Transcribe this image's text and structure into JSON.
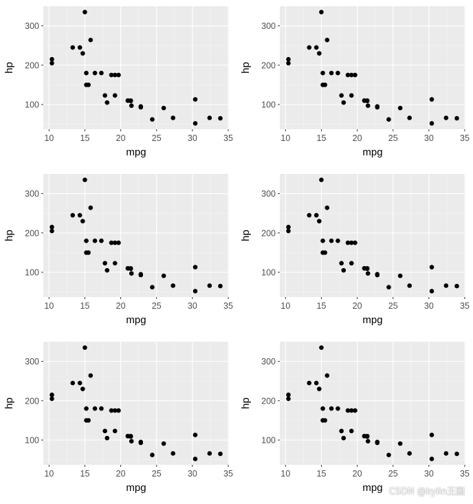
{
  "watermark": "CSDN @kylin王国",
  "style": {
    "panel_bg": "#ebebeb",
    "grid_major": "#ffffff",
    "point": "#000000"
  },
  "chart_data": [
    {
      "type": "scatter",
      "xlabel": "mpg",
      "ylabel": "hp",
      "xlim": [
        9.2,
        35.1
      ],
      "ylim": [
        37.05,
        349.95
      ],
      "xticks": [
        10,
        15,
        20,
        25,
        30,
        35
      ],
      "yticks": [
        100,
        200,
        300
      ],
      "grid": true,
      "x": [
        21,
        21,
        22.8,
        21.4,
        18.7,
        18.1,
        14.3,
        24.4,
        22.8,
        19.2,
        17.8,
        16.4,
        17.3,
        15.2,
        10.4,
        10.4,
        14.7,
        32.4,
        30.4,
        33.9,
        21.5,
        15.5,
        15.2,
        13.3,
        19.2,
        27.3,
        26,
        30.4,
        15.8,
        19.7,
        15,
        21.4
      ],
      "y": [
        110,
        110,
        93,
        110,
        175,
        105,
        245,
        62,
        95,
        123,
        123,
        180,
        180,
        180,
        205,
        215,
        230,
        66,
        52,
        65,
        97,
        150,
        150,
        245,
        175,
        66,
        91,
        113,
        264,
        175,
        335,
        109
      ]
    },
    {
      "type": "scatter",
      "xlabel": "mpg",
      "ylabel": "hp",
      "xlim": [
        9.2,
        35.1
      ],
      "ylim": [
        37.05,
        349.95
      ],
      "xticks": [
        10,
        15,
        20,
        25,
        30,
        35
      ],
      "yticks": [
        100,
        200,
        300
      ],
      "grid": true,
      "x": [
        21,
        21,
        22.8,
        21.4,
        18.7,
        18.1,
        14.3,
        24.4,
        22.8,
        19.2,
        17.8,
        16.4,
        17.3,
        15.2,
        10.4,
        10.4,
        14.7,
        32.4,
        30.4,
        33.9,
        21.5,
        15.5,
        15.2,
        13.3,
        19.2,
        27.3,
        26,
        30.4,
        15.8,
        19.7,
        15,
        21.4
      ],
      "y": [
        110,
        110,
        93,
        110,
        175,
        105,
        245,
        62,
        95,
        123,
        123,
        180,
        180,
        180,
        205,
        215,
        230,
        66,
        52,
        65,
        97,
        150,
        150,
        245,
        175,
        66,
        91,
        113,
        264,
        175,
        335,
        109
      ]
    },
    {
      "type": "scatter",
      "xlabel": "mpg",
      "ylabel": "hp",
      "xlim": [
        9.2,
        35.1
      ],
      "ylim": [
        37.05,
        349.95
      ],
      "xticks": [
        10,
        15,
        20,
        25,
        30,
        35
      ],
      "yticks": [
        100,
        200,
        300
      ],
      "grid": true,
      "x": [
        21,
        21,
        22.8,
        21.4,
        18.7,
        18.1,
        14.3,
        24.4,
        22.8,
        19.2,
        17.8,
        16.4,
        17.3,
        15.2,
        10.4,
        10.4,
        14.7,
        32.4,
        30.4,
        33.9,
        21.5,
        15.5,
        15.2,
        13.3,
        19.2,
        27.3,
        26,
        30.4,
        15.8,
        19.7,
        15,
        21.4
      ],
      "y": [
        110,
        110,
        93,
        110,
        175,
        105,
        245,
        62,
        95,
        123,
        123,
        180,
        180,
        180,
        205,
        215,
        230,
        66,
        52,
        65,
        97,
        150,
        150,
        245,
        175,
        66,
        91,
        113,
        264,
        175,
        335,
        109
      ]
    },
    {
      "type": "scatter",
      "xlabel": "mpg",
      "ylabel": "hp",
      "xlim": [
        9.2,
        35.1
      ],
      "ylim": [
        37.05,
        349.95
      ],
      "xticks": [
        10,
        15,
        20,
        25,
        30,
        35
      ],
      "yticks": [
        100,
        200,
        300
      ],
      "grid": true,
      "x": [
        21,
        21,
        22.8,
        21.4,
        18.7,
        18.1,
        14.3,
        24.4,
        22.8,
        19.2,
        17.8,
        16.4,
        17.3,
        15.2,
        10.4,
        10.4,
        14.7,
        32.4,
        30.4,
        33.9,
        21.5,
        15.5,
        15.2,
        13.3,
        19.2,
        27.3,
        26,
        30.4,
        15.8,
        19.7,
        15,
        21.4
      ],
      "y": [
        110,
        110,
        93,
        110,
        175,
        105,
        245,
        62,
        95,
        123,
        123,
        180,
        180,
        180,
        205,
        215,
        230,
        66,
        52,
        65,
        97,
        150,
        150,
        245,
        175,
        66,
        91,
        113,
        264,
        175,
        335,
        109
      ]
    },
    {
      "type": "scatter",
      "xlabel": "mpg",
      "ylabel": "hp",
      "xlim": [
        9.2,
        35.1
      ],
      "ylim": [
        37.05,
        349.95
      ],
      "xticks": [
        10,
        15,
        20,
        25,
        30,
        35
      ],
      "yticks": [
        100,
        200,
        300
      ],
      "grid": true,
      "x": [
        21,
        21,
        22.8,
        21.4,
        18.7,
        18.1,
        14.3,
        24.4,
        22.8,
        19.2,
        17.8,
        16.4,
        17.3,
        15.2,
        10.4,
        10.4,
        14.7,
        32.4,
        30.4,
        33.9,
        21.5,
        15.5,
        15.2,
        13.3,
        19.2,
        27.3,
        26,
        30.4,
        15.8,
        19.7,
        15,
        21.4
      ],
      "y": [
        110,
        110,
        93,
        110,
        175,
        105,
        245,
        62,
        95,
        123,
        123,
        180,
        180,
        180,
        205,
        215,
        230,
        66,
        52,
        65,
        97,
        150,
        150,
        245,
        175,
        66,
        91,
        113,
        264,
        175,
        335,
        109
      ]
    },
    {
      "type": "scatter",
      "xlabel": "mpg",
      "ylabel": "hp",
      "xlim": [
        9.2,
        35.1
      ],
      "ylim": [
        37.05,
        349.95
      ],
      "xticks": [
        10,
        15,
        20,
        25,
        30,
        35
      ],
      "yticks": [
        100,
        200,
        300
      ],
      "grid": true,
      "x": [
        21,
        21,
        22.8,
        21.4,
        18.7,
        18.1,
        14.3,
        24.4,
        22.8,
        19.2,
        17.8,
        16.4,
        17.3,
        15.2,
        10.4,
        10.4,
        14.7,
        32.4,
        30.4,
        33.9,
        21.5,
        15.5,
        15.2,
        13.3,
        19.2,
        27.3,
        26,
        30.4,
        15.8,
        19.7,
        15,
        21.4
      ],
      "y": [
        110,
        110,
        93,
        110,
        175,
        105,
        245,
        62,
        95,
        123,
        123,
        180,
        180,
        180,
        205,
        215,
        230,
        66,
        52,
        65,
        97,
        150,
        150,
        245,
        175,
        66,
        91,
        113,
        264,
        175,
        335,
        109
      ]
    }
  ]
}
